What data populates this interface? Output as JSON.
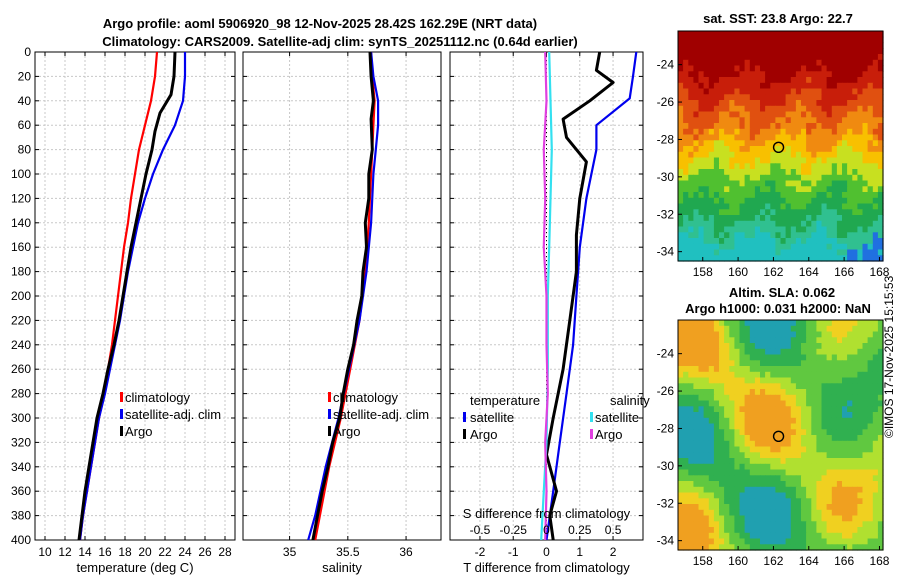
{
  "figure": {
    "title_line1": "Argo profile: aoml 5906920_98 12-Nov-2025 28.42S 162.29E (NRT data)",
    "title_line2": "Climatology: CARS2009. Satellite-adj clim: synTS_20251112.nc (0.64d earlier)",
    "credit": "©IMOS 17-Nov-2025 15:15:53"
  },
  "colors": {
    "climatology": "#ff0000",
    "satellite": "#0000ee",
    "argo": "#000000",
    "sal_satellite": "#33e0f0",
    "sal_argo": "#e040e0",
    "grid": "#c8c8c8"
  },
  "chart_data": [
    {
      "id": "temperature",
      "type": "line",
      "xlabel": "temperature (deg C)",
      "ylabel": "",
      "xlim": [
        9,
        29
      ],
      "ylim": [
        400,
        0
      ],
      "xticks": [
        10,
        12,
        14,
        16,
        18,
        20,
        22,
        24,
        26,
        28
      ],
      "yticks": [
        0,
        20,
        40,
        60,
        80,
        100,
        120,
        140,
        160,
        180,
        200,
        220,
        240,
        260,
        280,
        300,
        320,
        340,
        360,
        380,
        400
      ],
      "legend": [
        "climatology",
        "satellite-adj. clim",
        "Argo"
      ],
      "series": [
        {
          "name": "climatology",
          "color": "#ff0000",
          "points": [
            [
              21.2,
              0
            ],
            [
              21.0,
              20
            ],
            [
              20.6,
              40
            ],
            [
              20.0,
              60
            ],
            [
              19.4,
              80
            ],
            [
              19.0,
              100
            ],
            [
              18.6,
              120
            ],
            [
              18.3,
              140
            ],
            [
              17.9,
              160
            ],
            [
              17.6,
              180
            ],
            [
              17.3,
              200
            ],
            [
              17.0,
              220
            ],
            [
              16.7,
              240
            ],
            [
              16.3,
              260
            ],
            [
              15.9,
              280
            ],
            [
              15.4,
              300
            ],
            [
              15.0,
              320
            ],
            [
              14.6,
              340
            ],
            [
              14.2,
              360
            ],
            [
              13.8,
              380
            ],
            [
              13.5,
              400
            ]
          ]
        },
        {
          "name": "satellite-adj. clim",
          "color": "#0000ee",
          "points": [
            [
              24.0,
              0
            ],
            [
              24.0,
              20
            ],
            [
              23.8,
              40
            ],
            [
              23.0,
              60
            ],
            [
              21.8,
              80
            ],
            [
              20.8,
              100
            ],
            [
              20.0,
              120
            ],
            [
              19.3,
              140
            ],
            [
              18.8,
              160
            ],
            [
              18.3,
              180
            ],
            [
              17.9,
              200
            ],
            [
              17.5,
              220
            ],
            [
              17.0,
              240
            ],
            [
              16.5,
              260
            ],
            [
              16.0,
              280
            ],
            [
              15.4,
              300
            ],
            [
              15.0,
              320
            ],
            [
              14.6,
              340
            ],
            [
              14.2,
              360
            ],
            [
              13.8,
              380
            ],
            [
              13.5,
              400
            ]
          ]
        },
        {
          "name": "Argo",
          "color": "#000000",
          "points": [
            [
              23.0,
              0
            ],
            [
              22.9,
              20
            ],
            [
              22.6,
              35
            ],
            [
              21.5,
              50
            ],
            [
              21.0,
              65
            ],
            [
              20.7,
              80
            ],
            [
              20.1,
              100
            ],
            [
              19.6,
              120
            ],
            [
              19.1,
              140
            ],
            [
              18.6,
              160
            ],
            [
              18.2,
              180
            ],
            [
              17.8,
              200
            ],
            [
              17.4,
              220
            ],
            [
              16.9,
              240
            ],
            [
              16.3,
              260
            ],
            [
              15.8,
              280
            ],
            [
              15.2,
              300
            ],
            [
              14.8,
              320
            ],
            [
              14.4,
              340
            ],
            [
              14.0,
              360
            ],
            [
              13.7,
              380
            ],
            [
              13.4,
              400
            ]
          ]
        }
      ]
    },
    {
      "id": "salinity",
      "type": "line",
      "xlabel": "salinity",
      "xlim": [
        34.6,
        36.3
      ],
      "ylim": [
        400,
        0
      ],
      "xticks": [
        35,
        35.5,
        36
      ],
      "xticklabels": [
        "35",
        "35.5",
        "36"
      ],
      "legend": [
        "climatology",
        "satellite-adj. clim",
        "Argo"
      ],
      "series": [
        {
          "name": "climatology",
          "color": "#ff0000",
          "points": [
            [
              35.7,
              0
            ],
            [
              35.71,
              20
            ],
            [
              35.73,
              40
            ],
            [
              35.72,
              60
            ],
            [
              35.71,
              80
            ],
            [
              35.7,
              100
            ],
            [
              35.68,
              140
            ],
            [
              35.65,
              180
            ],
            [
              35.6,
              220
            ],
            [
              35.52,
              260
            ],
            [
              35.44,
              300
            ],
            [
              35.34,
              340
            ],
            [
              35.26,
              380
            ],
            [
              35.22,
              400
            ]
          ]
        },
        {
          "name": "satellite-adj. clim",
          "color": "#0000ee",
          "points": [
            [
              35.7,
              0
            ],
            [
              35.72,
              20
            ],
            [
              35.76,
              40
            ],
            [
              35.76,
              60
            ],
            [
              35.74,
              80
            ],
            [
              35.72,
              100
            ],
            [
              35.7,
              140
            ],
            [
              35.66,
              180
            ],
            [
              35.6,
              220
            ],
            [
              35.51,
              260
            ],
            [
              35.42,
              300
            ],
            [
              35.31,
              340
            ],
            [
              35.22,
              380
            ],
            [
              35.16,
              400
            ]
          ]
        },
        {
          "name": "Argo",
          "color": "#000000",
          "points": [
            [
              35.69,
              0
            ],
            [
              35.7,
              20
            ],
            [
              35.72,
              40
            ],
            [
              35.7,
              55
            ],
            [
              35.71,
              80
            ],
            [
              35.68,
              100
            ],
            [
              35.68,
              120
            ],
            [
              35.65,
              140
            ],
            [
              35.66,
              160
            ],
            [
              35.63,
              180
            ],
            [
              35.62,
              200
            ],
            [
              35.58,
              220
            ],
            [
              35.55,
              240
            ],
            [
              35.5,
              260
            ],
            [
              35.46,
              280
            ],
            [
              35.43,
              300
            ],
            [
              35.37,
              320
            ],
            [
              35.33,
              340
            ],
            [
              35.28,
              360
            ],
            [
              35.24,
              380
            ],
            [
              35.2,
              400
            ]
          ]
        }
      ]
    },
    {
      "id": "differences",
      "type": "line",
      "xlabel": "T difference from climatology",
      "xlabel_top": "S difference from climatology",
      "xlim": [
        -2.9,
        2.9
      ],
      "ylim": [
        400,
        0
      ],
      "xticks": [
        -2,
        -1,
        0,
        1,
        2
      ],
      "s_xlim": [
        -0.725,
        0.725
      ],
      "s_xticks": [
        -0.5,
        -0.25,
        0,
        0.25,
        0.5
      ],
      "s_xticklabels": [
        "-0.5",
        "-0.25",
        "0",
        "0.25",
        "0.5"
      ],
      "legend_left_title": "temperature",
      "legend_right_title": "salinity",
      "legend_left": [
        "satellite",
        "Argo"
      ],
      "legend_right": [
        "satellite",
        "Argo"
      ],
      "series": [
        {
          "name": "T satellite",
          "color": "#0000ee",
          "scale": "T",
          "points": [
            [
              2.7,
              0
            ],
            [
              2.6,
              20
            ],
            [
              2.5,
              38
            ],
            [
              1.5,
              60
            ],
            [
              1.5,
              80
            ],
            [
              1.2,
              120
            ],
            [
              1.0,
              160
            ],
            [
              0.9,
              200
            ],
            [
              0.8,
              240
            ],
            [
              0.6,
              280
            ],
            [
              0.4,
              320
            ],
            [
              0.2,
              360
            ],
            [
              0.0,
              400
            ]
          ]
        },
        {
          "name": "T Argo",
          "color": "#000000",
          "scale": "T",
          "points": [
            [
              1.6,
              0
            ],
            [
              1.5,
              15
            ],
            [
              2.0,
              25
            ],
            [
              1.3,
              40
            ],
            [
              0.5,
              55
            ],
            [
              0.6,
              70
            ],
            [
              1.2,
              90
            ],
            [
              1.0,
              120
            ],
            [
              0.9,
              150
            ],
            [
              0.9,
              180
            ],
            [
              0.7,
              220
            ],
            [
              0.5,
              260
            ],
            [
              0.2,
              300
            ],
            [
              0.0,
              330
            ],
            [
              0.3,
              360
            ],
            [
              0.1,
              380
            ],
            [
              0.2,
              400
            ]
          ]
        },
        {
          "name": "S satellite",
          "color": "#33e0f0",
          "scale": "S",
          "points": [
            [
              0.02,
              0
            ],
            [
              0.03,
              40
            ],
            [
              0.04,
              80
            ],
            [
              0.03,
              120
            ],
            [
              0.02,
              160
            ],
            [
              0.01,
              200
            ],
            [
              0.01,
              260
            ],
            [
              0.0,
              320
            ],
            [
              -0.02,
              360
            ],
            [
              -0.04,
              400
            ]
          ]
        },
        {
          "name": "S Argo",
          "color": "#e040e0",
          "scale": "S",
          "points": [
            [
              -0.01,
              0
            ],
            [
              0.0,
              40
            ],
            [
              -0.02,
              80
            ],
            [
              -0.01,
              120
            ],
            [
              -0.02,
              160
            ],
            [
              0.0,
              200
            ],
            [
              0.0,
              240
            ],
            [
              0.01,
              280
            ],
            [
              -0.01,
              320
            ],
            [
              0.0,
              360
            ],
            [
              -0.01,
              400
            ]
          ]
        }
      ]
    },
    {
      "id": "sst_map",
      "type": "heatmap",
      "title": "sat. SST: 23.8 Argo: 22.7",
      "xlim": [
        156.6,
        168.2
      ],
      "ylim": [
        -34.5,
        -22.2
      ],
      "xticks": [
        158,
        160,
        162,
        164,
        166,
        168
      ],
      "yticks": [
        -24,
        -26,
        -28,
        -30,
        -32,
        -34
      ],
      "yticklabels": [
        "-24",
        "-26",
        "-28",
        "-30",
        "-32",
        "-34"
      ],
      "marker": [
        162.29,
        -28.42
      ]
    },
    {
      "id": "sla_map",
      "type": "heatmap",
      "title_line1": "Altim. SLA: 0.062",
      "title_line2": "Argo h1000: 0.031 h2000: NaN",
      "xlim": [
        156.6,
        168.2
      ],
      "ylim": [
        -34.5,
        -22.2
      ],
      "xticks": [
        158,
        160,
        162,
        164,
        166,
        168
      ],
      "yticks": [
        -24,
        -26,
        -28,
        -30,
        -32,
        -34
      ],
      "yticklabels": [
        "-24",
        "-26",
        "-28",
        "-30",
        "-32",
        "-34"
      ],
      "marker": [
        162.29,
        -28.42
      ]
    }
  ]
}
